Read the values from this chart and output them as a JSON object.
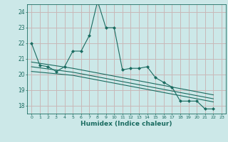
{
  "xlabel": "Humidex (Indice chaleur)",
  "bg_color": "#cce8e8",
  "grid_color": "#c8b8b8",
  "line_color": "#1a6b60",
  "xlim": [
    -0.5,
    23.5
  ],
  "ylim": [
    17.5,
    24.5
  ],
  "yticks": [
    18,
    19,
    20,
    21,
    22,
    23,
    24
  ],
  "xticks": [
    0,
    1,
    2,
    3,
    4,
    5,
    6,
    7,
    8,
    9,
    10,
    11,
    12,
    13,
    14,
    15,
    16,
    17,
    18,
    19,
    20,
    21,
    22,
    23
  ],
  "series": [
    [
      22.0,
      20.6,
      20.5,
      20.2,
      20.5,
      21.5,
      21.5,
      22.5,
      24.7,
      23.0,
      23.0,
      20.3,
      20.4,
      20.4,
      20.5,
      19.8,
      19.5,
      19.2,
      18.3,
      18.3,
      18.3,
      17.8,
      17.8
    ],
    [
      20.2,
      20.15,
      20.1,
      20.05,
      20.0,
      19.95,
      19.85,
      19.75,
      19.65,
      19.55,
      19.45,
      19.35,
      19.25,
      19.15,
      19.05,
      18.95,
      18.85,
      18.75,
      18.65,
      18.55,
      18.45,
      18.35,
      18.25
    ],
    [
      20.5,
      20.43,
      20.36,
      20.29,
      20.22,
      20.15,
      20.05,
      19.95,
      19.85,
      19.75,
      19.65,
      19.55,
      19.45,
      19.35,
      19.25,
      19.15,
      19.05,
      18.95,
      18.85,
      18.75,
      18.65,
      18.55,
      18.45
    ],
    [
      20.8,
      20.72,
      20.64,
      20.56,
      20.48,
      20.4,
      20.3,
      20.2,
      20.1,
      20.0,
      19.9,
      19.8,
      19.7,
      19.6,
      19.5,
      19.4,
      19.3,
      19.2,
      19.1,
      19.0,
      18.9,
      18.8,
      18.7
    ]
  ],
  "series_markers": [
    true,
    false,
    false,
    false
  ],
  "series_lw": [
    0.8,
    0.8,
    0.8,
    0.8
  ]
}
